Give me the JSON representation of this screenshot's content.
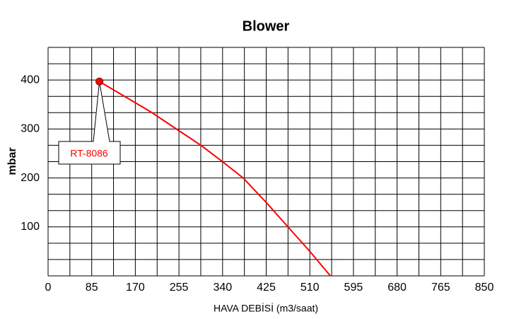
{
  "chart_data": {
    "type": "line",
    "title": "Blower",
    "xlabel": "HAVA DEBİSİ (m3/saat)",
    "ylabel": "mbar",
    "annotation": "RT-8086",
    "x": [
      100,
      200,
      250,
      300,
      340,
      380,
      425,
      470,
      510,
      550
    ],
    "series": [
      {
        "color": "#ff0000",
        "values": [
          397,
          335,
          300,
          265,
          233,
          200,
          150,
          97,
          50,
          0
        ]
      }
    ],
    "xlim": [
      0,
      850
    ],
    "xticks": [
      0,
      85,
      170,
      255,
      340,
      425,
      510,
      595,
      680,
      765,
      850
    ],
    "xgrid": [
      0,
      42.5,
      85,
      127.5,
      170,
      212.5,
      255,
      297.5,
      340,
      382.5,
      425,
      467.5,
      510,
      552.5,
      595,
      637.5,
      680,
      722.5,
      765,
      807.5,
      850
    ],
    "ylim": [
      0,
      466.67
    ],
    "yticks": [
      100,
      200,
      300,
      400
    ],
    "ygrid": [
      0,
      33.33,
      66.67,
      100,
      133.33,
      166.67,
      200,
      233.33,
      266.67,
      300,
      333.33,
      366.67,
      400,
      433.33,
      466.67
    ],
    "grid": true
  }
}
